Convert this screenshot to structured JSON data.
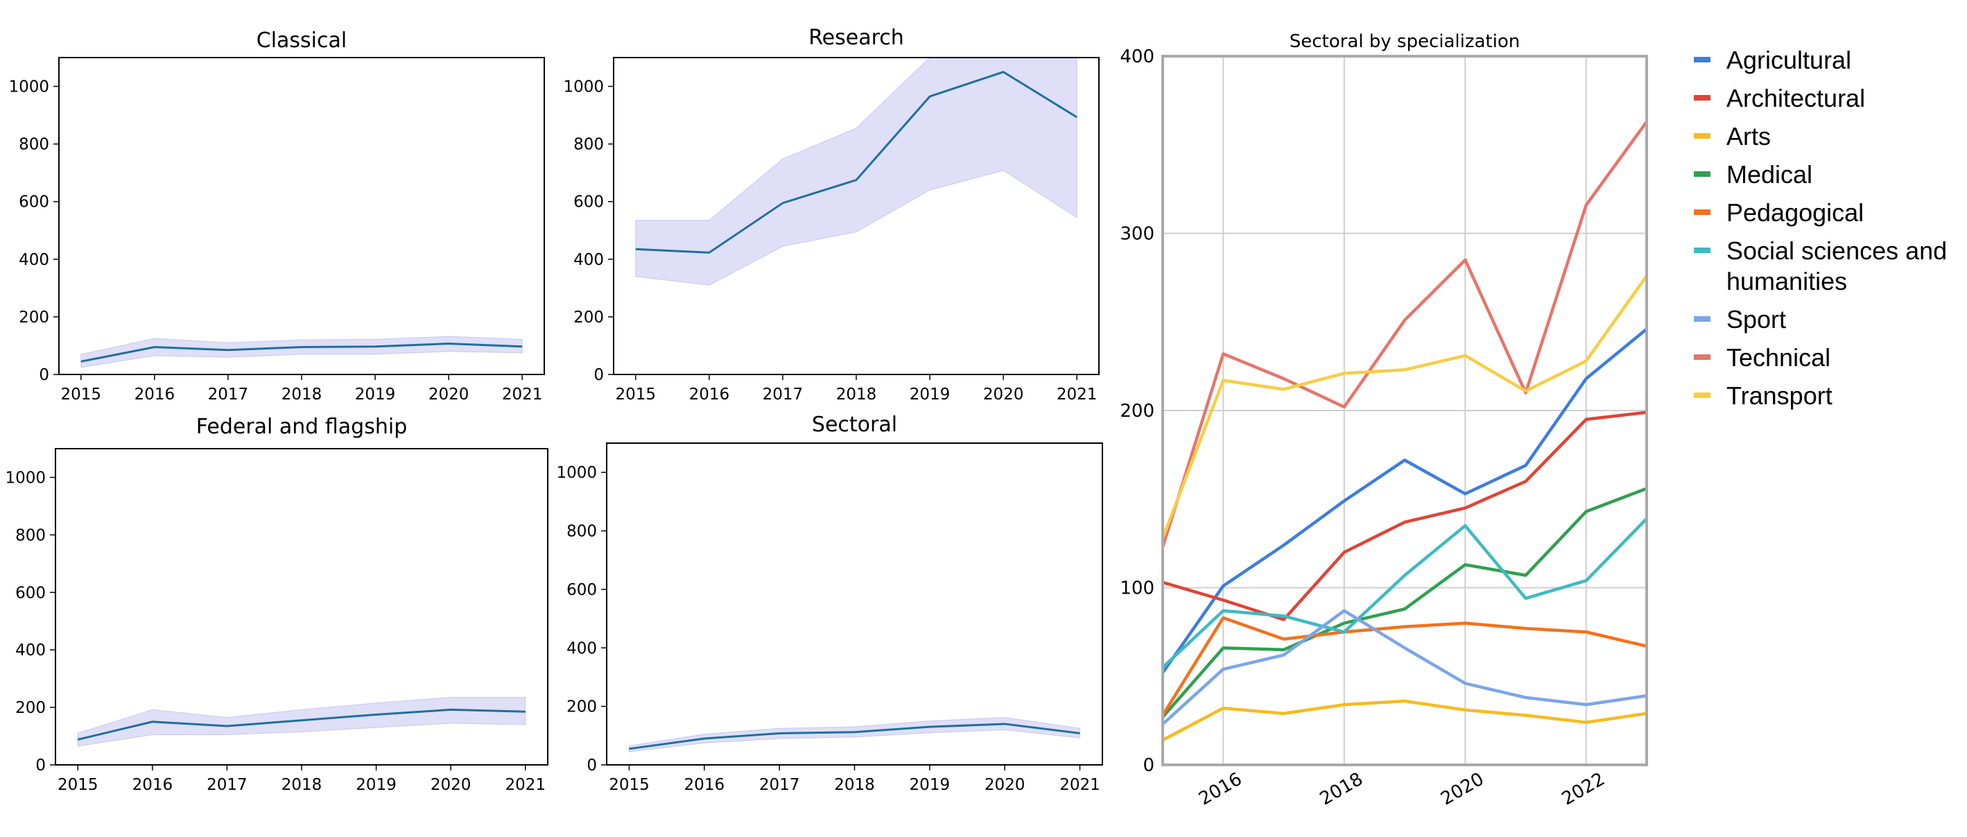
{
  "chart_data": [
    {
      "type": "line",
      "title": "Classical",
      "x": [
        2015,
        2016,
        2017,
        2018,
        2019,
        2020,
        2021
      ],
      "series": [
        {
          "values": [
            45,
            95,
            85,
            95,
            97,
            107,
            97
          ]
        }
      ],
      "band_lower": [
        25,
        65,
        60,
        70,
        70,
        80,
        75
      ],
      "band_upper": [
        70,
        125,
        110,
        120,
        122,
        132,
        122
      ],
      "xticks": [
        2015,
        2016,
        2017,
        2018,
        2019,
        2020,
        2021
      ],
      "yticks": [
        0,
        200,
        400,
        600,
        800,
        1000
      ],
      "xlim": [
        2014.7,
        2021.3
      ],
      "ylim": [
        0,
        1100
      ],
      "line_color": "#1f6fa0",
      "band_color": "#d9d9f7"
    },
    {
      "type": "line",
      "title": "Research",
      "x": [
        2015,
        2016,
        2017,
        2018,
        2019,
        2020,
        2021
      ],
      "series": [
        {
          "values": [
            435,
            423,
            595,
            675,
            965,
            1050,
            893
          ]
        }
      ],
      "band_lower": [
        340,
        310,
        445,
        495,
        640,
        708,
        545
      ],
      "band_upper": [
        535,
        535,
        748,
        855,
        1100,
        1100,
        1100
      ],
      "xticks": [
        2015,
        2016,
        2017,
        2018,
        2019,
        2020,
        2021
      ],
      "yticks": [
        0,
        200,
        400,
        600,
        800,
        1000
      ],
      "xlim": [
        2014.7,
        2021.3
      ],
      "ylim": [
        0,
        1100
      ],
      "line_color": "#1f6fa0",
      "band_color": "#d9d9f7"
    },
    {
      "type": "line",
      "title": "Federal and flagship",
      "x": [
        2015,
        2016,
        2017,
        2018,
        2019,
        2020,
        2021
      ],
      "series": [
        {
          "values": [
            88,
            150,
            135,
            155,
            175,
            192,
            185
          ]
        }
      ],
      "band_lower": [
        65,
        105,
        105,
        115,
        130,
        145,
        140
      ],
      "band_upper": [
        110,
        192,
        165,
        192,
        215,
        235,
        235
      ],
      "xticks": [
        2015,
        2016,
        2017,
        2018,
        2019,
        2020,
        2021
      ],
      "yticks": [
        0,
        200,
        400,
        600,
        800,
        1000
      ],
      "xlim": [
        2014.7,
        2021.3
      ],
      "ylim": [
        0,
        1100
      ],
      "line_color": "#1f6fa0",
      "band_color": "#d9d9f7"
    },
    {
      "type": "line",
      "title": "Sectoral",
      "x": [
        2015,
        2016,
        2017,
        2018,
        2019,
        2020,
        2021
      ],
      "series": [
        {
          "values": [
            55,
            90,
            108,
            112,
            130,
            140,
            108
          ]
        }
      ],
      "band_lower": [
        45,
        75,
        90,
        95,
        110,
        120,
        92
      ],
      "band_upper": [
        65,
        105,
        125,
        130,
        150,
        162,
        125
      ],
      "xticks": [
        2015,
        2016,
        2017,
        2018,
        2019,
        2020,
        2021
      ],
      "yticks": [
        0,
        200,
        400,
        600,
        800,
        1000
      ],
      "xlim": [
        2014.7,
        2021.3
      ],
      "ylim": [
        0,
        1100
      ],
      "line_color": "#1f6fa0",
      "band_color": "#d9d9f7"
    },
    {
      "type": "line",
      "title": "Sectoral by specialization",
      "x": [
        2015,
        2016,
        2017,
        2018,
        2019,
        2020,
        2021,
        2022,
        2023
      ],
      "xticks": [
        2016,
        2018,
        2020,
        2022
      ],
      "yticks": [
        0,
        100,
        200,
        300,
        400
      ],
      "xlim": [
        2015,
        2023
      ],
      "ylim": [
        0,
        400
      ],
      "grid": true,
      "legend": "right",
      "series": [
        {
          "name": "Agricultural",
          "color": "#3c7ddf",
          "values": [
            52,
            101,
            124,
            149,
            172,
            153,
            169,
            218,
            246
          ]
        },
        {
          "name": "Architectural",
          "color": "#df4436",
          "values": [
            103,
            93,
            82,
            120,
            137,
            145,
            160,
            195,
            199
          ]
        },
        {
          "name": "Arts",
          "color": "#f6bb1e",
          "values": [
            14,
            32,
            29,
            34,
            36,
            31,
            28,
            24,
            29
          ]
        },
        {
          "name": "Medical",
          "color": "#2fa04f",
          "values": [
            27,
            66,
            65,
            80,
            88,
            113,
            107,
            143,
            156
          ]
        },
        {
          "name": "Pedagogical",
          "color": "#f4711c",
          "values": [
            28,
            83,
            71,
            75,
            78,
            80,
            77,
            75,
            67
          ]
        },
        {
          "name": "Social sciences and\nhumanities",
          "color": "#3ebac2",
          "values": [
            55,
            87,
            84,
            75,
            107,
            135,
            94,
            104,
            139
          ]
        },
        {
          "name": "Sport",
          "color": "#7aa5ea",
          "values": [
            23,
            54,
            62,
            87,
            66,
            46,
            38,
            34,
            39
          ]
        },
        {
          "name": "Technical",
          "color": "#e8746a",
          "values": [
            123,
            232,
            218,
            202,
            251,
            285,
            210,
            316,
            363
          ]
        },
        {
          "name": "Transport",
          "color": "#f8cd45",
          "values": [
            128,
            217,
            212,
            221,
            223,
            231,
            211,
            228,
            276
          ]
        }
      ]
    }
  ]
}
